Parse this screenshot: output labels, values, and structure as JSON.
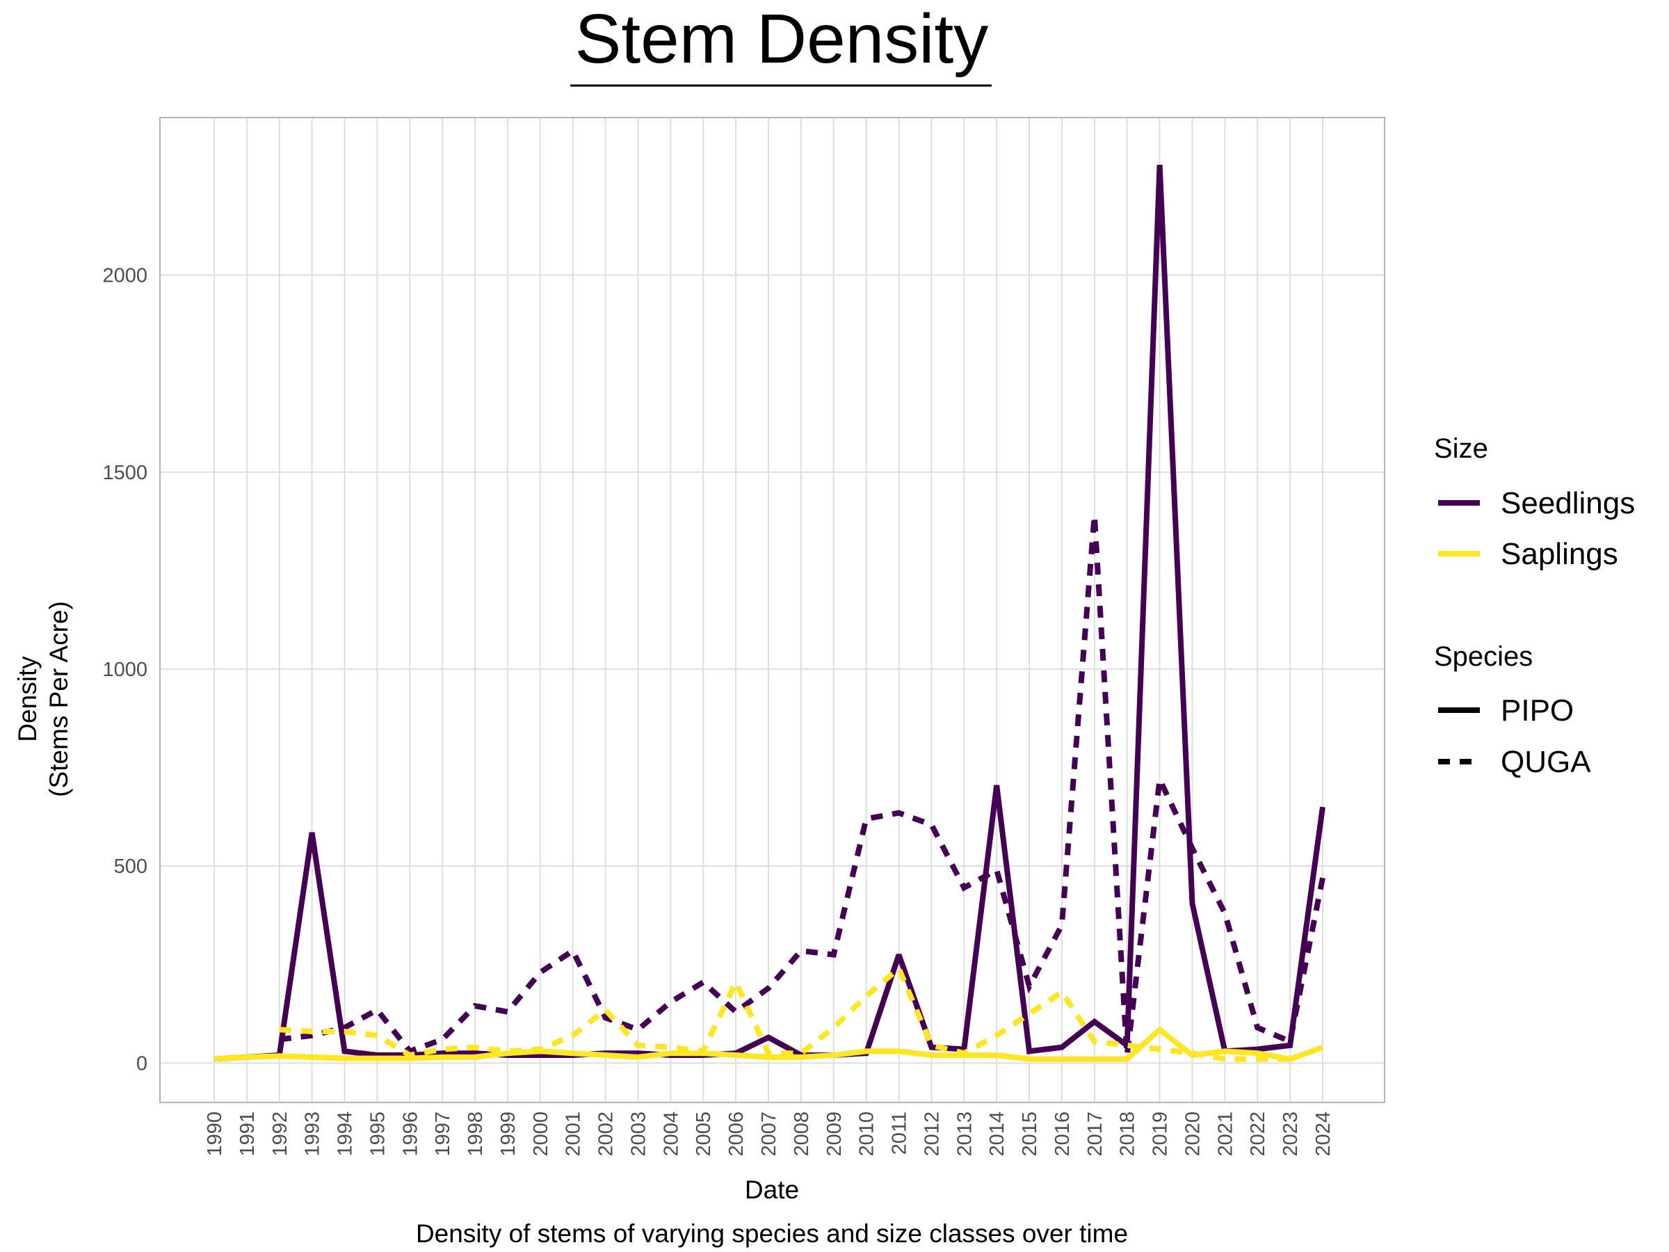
{
  "chart_data": {
    "type": "line",
    "title": "Stem Density",
    "xlabel": "Date",
    "ylabel_line1": "Density",
    "ylabel_line2": "(Stems Per Acre)",
    "caption": "Density of stems of varying species and size classes over time",
    "ylim": [
      -100,
      2400
    ],
    "yticks": [
      0,
      500,
      1000,
      1500,
      2000
    ],
    "grid": true,
    "legend_position": "right",
    "x": [
      1990,
      1991,
      1992,
      1993,
      1994,
      1995,
      1996,
      1997,
      1998,
      1999,
      2000,
      2001,
      2002,
      2003,
      2004,
      2005,
      2006,
      2007,
      2008,
      2009,
      2010,
      2011,
      2012,
      2013,
      2014,
      2015,
      2016,
      2017,
      2018,
      2019,
      2020,
      2021,
      2022,
      2023,
      2024
    ],
    "colors": {
      "Seedlings": "#440154",
      "Saplings": "#fde725"
    },
    "legend": {
      "size_title": "Size",
      "size_items": [
        "Seedlings",
        "Saplings"
      ],
      "species_title": "Species",
      "species_items": [
        "PIPO",
        "QUGA"
      ]
    },
    "series": [
      {
        "size": "Seedlings",
        "species": "PIPO",
        "values": [
          10,
          15,
          20,
          585,
          30,
          20,
          20,
          25,
          25,
          20,
          20,
          20,
          25,
          25,
          20,
          20,
          25,
          65,
          20,
          20,
          25,
          275,
          40,
          35,
          705,
          30,
          40,
          105,
          45,
          2280,
          405,
          30,
          35,
          45,
          650
        ]
      },
      {
        "size": "Seedlings",
        "species": "QUGA",
        "values": [
          null,
          null,
          60,
          70,
          90,
          135,
          30,
          60,
          145,
          130,
          230,
          285,
          115,
          85,
          155,
          205,
          130,
          190,
          285,
          275,
          620,
          635,
          605,
          445,
          490,
          195,
          350,
          1390,
          20,
          720,
          545,
          380,
          90,
          55,
          470
        ]
      },
      {
        "size": "Saplings",
        "species": "PIPO",
        "values": [
          10,
          15,
          18,
          15,
          12,
          12,
          12,
          15,
          15,
          25,
          30,
          25,
          20,
          15,
          25,
          25,
          20,
          15,
          15,
          20,
          30,
          30,
          20,
          20,
          20,
          10,
          10,
          10,
          10,
          85,
          20,
          30,
          25,
          10,
          40
        ]
      },
      {
        "size": "Saplings",
        "species": "QUGA",
        "values": [
          null,
          null,
          85,
          80,
          80,
          70,
          20,
          35,
          40,
          30,
          35,
          70,
          135,
          45,
          40,
          30,
          205,
          25,
          25,
          90,
          170,
          240,
          45,
          25,
          70,
          125,
          180,
          55,
          45,
          35,
          25,
          10,
          10,
          10,
          null
        ]
      }
    ]
  }
}
